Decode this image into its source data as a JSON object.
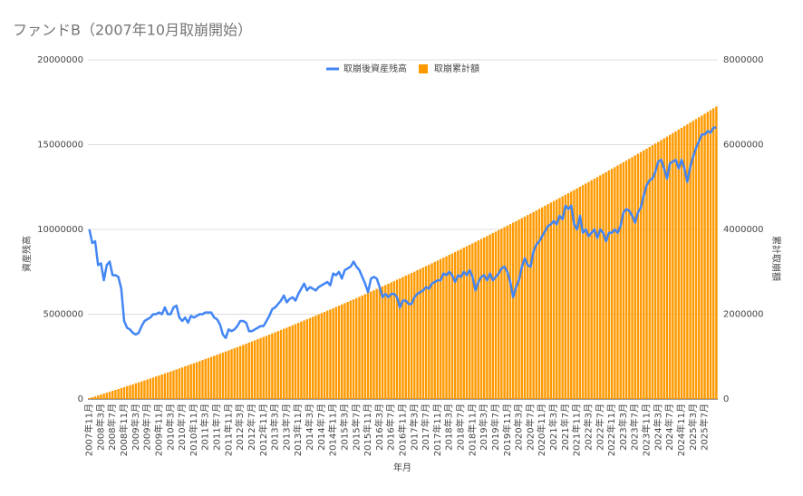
{
  "chart_data": {
    "type": "combo",
    "title": "ファンドB（2007年10月取崩開始）",
    "x_label": "年月",
    "y_label": "資産残高",
    "y2_label": "累計取崩額",
    "legend": "top",
    "categories": [
      "2007年11月",
      null,
      null,
      null,
      "2008年3月",
      null,
      null,
      null,
      "2008年7月",
      null,
      null,
      null,
      "2008年11月",
      null,
      null,
      null,
      "2009年3月",
      null,
      null,
      null,
      "2009年7月",
      null,
      null,
      null,
      "2009年11月",
      null,
      null,
      null,
      "2010年3月",
      null,
      null,
      null,
      "2010年7月",
      null,
      null,
      null,
      "2010年11月",
      null,
      null,
      null,
      "2011年3月",
      null,
      null,
      null,
      "2011年7月",
      null,
      null,
      null,
      "2011年11月",
      null,
      null,
      null,
      "2012年3月",
      null,
      null,
      null,
      "2012年7月",
      null,
      null,
      null,
      "2012年11月",
      null,
      null,
      null,
      "2013年3月",
      null,
      null,
      null,
      "2013年7月",
      null,
      null,
      null,
      "2013年11月",
      null,
      null,
      null,
      "2014年3月",
      null,
      null,
      null,
      "2014年7月",
      null,
      null,
      null,
      "2014年11月",
      null,
      null,
      null,
      "2015年3月",
      null,
      null,
      null,
      "2015年7月",
      null,
      null,
      null,
      "2015年11月",
      null,
      null,
      null,
      "2016年3月",
      null,
      null,
      null,
      "2016年7月",
      null,
      null,
      null,
      "2016年11月",
      null,
      null,
      null,
      "2017年3月",
      null,
      null,
      null,
      "2017年7月",
      null,
      null,
      null,
      "2017年11月",
      null,
      null,
      null,
      "2018年3月",
      null,
      null,
      null,
      "2018年7月",
      null,
      null,
      null,
      "2018年11月",
      null,
      null,
      null,
      "2019年3月",
      null,
      null,
      null,
      "2019年7月",
      null,
      null,
      null,
      "2019年11月",
      null,
      null,
      null,
      "2020年3月",
      null,
      null,
      null,
      "2020年7月",
      null,
      null,
      null,
      "2020年11月",
      null,
      null,
      null,
      "2021年3月",
      null,
      null,
      null,
      "2021年7月",
      null,
      null,
      null,
      "2021年11月",
      null,
      null,
      null,
      "2022年3月",
      null,
      null,
      null,
      "2022年7月",
      null,
      null,
      null,
      "2022年11月",
      null,
      null,
      null,
      "2023年3月",
      null,
      null,
      null,
      "2023年7月",
      null,
      null,
      null,
      "2023年11月",
      null,
      null,
      null,
      "2024年3月",
      null,
      null,
      null,
      "2024年7月",
      null,
      null,
      null,
      "2024年11月",
      null,
      null,
      null,
      "2025年3月",
      null,
      null,
      null,
      "2025年7月",
      null,
      null,
      null,
      null
    ],
    "series": [
      {
        "name": "取崩後資産残高",
        "type": "line",
        "axis": "y",
        "color": "#4285f4",
        "values": [
          10000000,
          9200000,
          9300000,
          7900000,
          8000000,
          7000000,
          7900000,
          8100000,
          7300000,
          7300000,
          7200000,
          6500000,
          4600000,
          4200000,
          4100000,
          3900000,
          3800000,
          3900000,
          4300000,
          4600000,
          4700000,
          4800000,
          5000000,
          5000000,
          5100000,
          5000000,
          5400000,
          5000000,
          5000000,
          5400000,
          5500000,
          4800000,
          4600000,
          4800000,
          4500000,
          4900000,
          4800000,
          4900000,
          5000000,
          5000000,
          5100000,
          5100000,
          5100000,
          4800000,
          4700000,
          4400000,
          3800000,
          3600000,
          4100000,
          4000000,
          4100000,
          4300000,
          4600000,
          4600000,
          4500000,
          4000000,
          4000000,
          4100000,
          4200000,
          4300000,
          4300000,
          4600000,
          4900000,
          5300000,
          5400000,
          5600000,
          5800000,
          6100000,
          5700000,
          5900000,
          6000000,
          5800000,
          6200000,
          6500000,
          6800000,
          6400000,
          6600000,
          6500000,
          6400000,
          6600000,
          6700000,
          6800000,
          6900000,
          6700000,
          7400000,
          7300000,
          7500000,
          7100000,
          7600000,
          7700000,
          7800000,
          8100000,
          7800000,
          7600000,
          7200000,
          6800000,
          6300000,
          7100000,
          7200000,
          7100000,
          6600000,
          6000000,
          6200000,
          6000000,
          6200000,
          6200000,
          6000000,
          5400000,
          5800000,
          5800000,
          5600000,
          5600000,
          6000000,
          6200000,
          6300000,
          6400000,
          6600000,
          6500000,
          6800000,
          6900000,
          7000000,
          7000000,
          7400000,
          7300000,
          7500000,
          7300000,
          6900000,
          7300000,
          7200000,
          7500000,
          7300000,
          7600000,
          7200000,
          6400000,
          6900000,
          7200000,
          7300000,
          7000000,
          7400000,
          7000000,
          7200000,
          7400000,
          7700000,
          7800000,
          7500000,
          6900000,
          6000000,
          6600000,
          7000000,
          7800000,
          8300000,
          7900000,
          7800000,
          8700000,
          9100000,
          9300000,
          9600000,
          9900000,
          10200000,
          10300000,
          10500000,
          10300000,
          10800000,
          10600000,
          11400000,
          11200000,
          11400000,
          10300000,
          10000000,
          10800000,
          9800000,
          10000000,
          9600000,
          9800000,
          10000000,
          9500000,
          10000000,
          9800000,
          9300000,
          9800000,
          9800000,
          10000000,
          9800000,
          10200000,
          11000000,
          11200000,
          11100000,
          10800000,
          10400000,
          11000000,
          11300000,
          12000000,
          12600000,
          12900000,
          13000000,
          13400000,
          14000000,
          14100000,
          13600000,
          13000000,
          13900000,
          14000000,
          14100000,
          13600000,
          14100000,
          13600000,
          12800000,
          13700000,
          14300000,
          14800000,
          15200000,
          15600000,
          15600000,
          15800000,
          15700000,
          16000000,
          16000000
        ]
      },
      {
        "name": "取崩累計額",
        "type": "bar",
        "axis": "y2",
        "color": "#ff9900",
        "values": [
          20000,
          41000,
          62000,
          84000,
          105000,
          127000,
          148000,
          170000,
          192000,
          214000,
          236000,
          258000,
          280000,
          302000,
          325000,
          347000,
          370000,
          392000,
          415000,
          438000,
          461000,
          484000,
          507000,
          531000,
          554000,
          578000,
          601000,
          625000,
          649000,
          673000,
          697000,
          721000,
          745000,
          770000,
          794000,
          819000,
          843000,
          868000,
          893000,
          918000,
          943000,
          968000,
          993000,
          1018000,
          1044000,
          1069000,
          1095000,
          1120000,
          1146000,
          1172000,
          1198000,
          1224000,
          1250000,
          1277000,
          1303000,
          1330000,
          1356000,
          1383000,
          1410000,
          1437000,
          1464000,
          1491000,
          1518000,
          1545000,
          1573000,
          1600000,
          1628000,
          1655000,
          1683000,
          1711000,
          1739000,
          1767000,
          1795000,
          1824000,
          1852000,
          1881000,
          1909000,
          1938000,
          1967000,
          1996000,
          2025000,
          2054000,
          2083000,
          2112000,
          2142000,
          2171000,
          2201000,
          2230000,
          2260000,
          2290000,
          2320000,
          2350000,
          2380000,
          2411000,
          2441000,
          2472000,
          2502000,
          2533000,
          2564000,
          2595000,
          2626000,
          2657000,
          2688000,
          2719000,
          2751000,
          2782000,
          2814000,
          2845000,
          2877000,
          2909000,
          2941000,
          2973000,
          3005000,
          3038000,
          3070000,
          3103000,
          3135000,
          3168000,
          3201000,
          3234000,
          3267000,
          3300000,
          3333000,
          3366000,
          3400000,
          3433000,
          3467000,
          3500000,
          3534000,
          3568000,
          3602000,
          3636000,
          3670000,
          3705000,
          3739000,
          3774000,
          3808000,
          3843000,
          3878000,
          3913000,
          3948000,
          3983000,
          4018000,
          4053000,
          4089000,
          4124000,
          4160000,
          4195000,
          4231000,
          4267000,
          4303000,
          4339000,
          4375000,
          4412000,
          4448000,
          4485000,
          4521000,
          4558000,
          4595000,
          4632000,
          4669000,
          4706000,
          4743000,
          4780000,
          4818000,
          4855000,
          4893000,
          4930000,
          4968000,
          5006000,
          5044000,
          5082000,
          5120000,
          5159000,
          5197000,
          5236000,
          5274000,
          5313000,
          5352000,
          5391000,
          5430000,
          5469000,
          5508000,
          5547000,
          5587000,
          5626000,
          5666000,
          5705000,
          5745000,
          5785000,
          5825000,
          5865000,
          5905000,
          5946000,
          5986000,
          6027000,
          6067000,
          6108000,
          6149000,
          6190000,
          6231000,
          6272000,
          6313000,
          6354000,
          6396000,
          6437000,
          6479000,
          6520000,
          6562000,
          6604000,
          6646000,
          6688000,
          6730000,
          6773000,
          6815000,
          6858000,
          6900000
        ]
      }
    ],
    "ylim": [
      0,
      20000000
    ],
    "yticks": [
      0,
      5000000,
      10000000,
      15000000,
      20000000
    ],
    "y2lim": [
      0,
      8000000
    ],
    "y2ticks": [
      0,
      2000000,
      4000000,
      6000000,
      8000000
    ],
    "grid": true
  }
}
